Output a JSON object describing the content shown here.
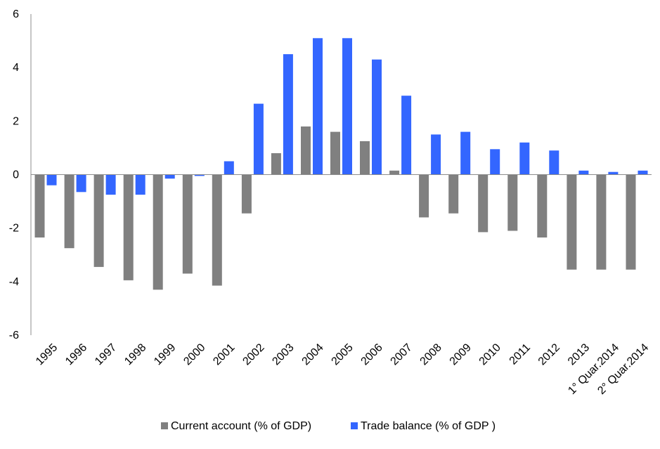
{
  "chart_data": {
    "type": "bar",
    "categories": [
      "1995",
      "1996",
      "1997",
      "1998",
      "1999",
      "2000",
      "2001",
      "2002",
      "2003",
      "2004",
      "2005",
      "2006",
      "2007",
      "2008",
      "2009",
      "2010",
      "2011",
      "2012",
      "2013",
      "1° Quar.2014",
      "2° Quar.2014"
    ],
    "series": [
      {
        "name": "Current account (% of GDP)",
        "color": "#808080",
        "values": [
          -2.35,
          -2.75,
          -3.45,
          -3.95,
          -4.3,
          -3.7,
          -4.15,
          -1.45,
          0.8,
          1.8,
          1.6,
          1.25,
          0.15,
          -1.6,
          -1.45,
          -2.15,
          -2.1,
          -2.35,
          -3.55,
          -3.55,
          -3.55
        ]
      },
      {
        "name": "Trade balance (% of GDP )",
        "color": "#3366ff",
        "values": [
          -0.4,
          -0.65,
          -0.75,
          -0.75,
          -0.15,
          -0.05,
          0.5,
          2.65,
          4.5,
          5.1,
          5.1,
          4.3,
          2.95,
          1.5,
          1.6,
          0.95,
          1.2,
          0.9,
          0.15,
          0.1,
          0.15
        ]
      }
    ],
    "yticks": [
      "6",
      "4",
      "2",
      "0",
      "-2",
      "-4",
      "-6"
    ],
    "ylim": [
      -6,
      6
    ],
    "grid": false,
    "legend": "bottom-center"
  }
}
